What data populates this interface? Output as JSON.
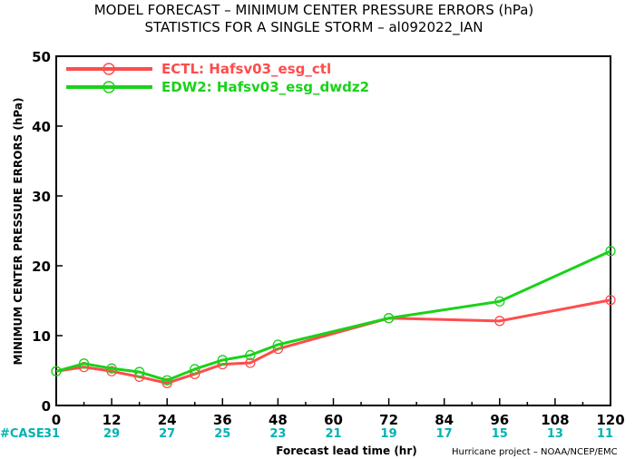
{
  "chart_data": {
    "type": "line",
    "title": "MODEL FORECAST – MINIMUM CENTER PRESSURE ERRORS (hPa)",
    "subtitle": "STATISTICS FOR A SINGLE STORM – al092022_IAN",
    "xlabel": "Forecast lead time (hr)",
    "ylabel": "MINIMUM CENTER PRESSURE ERRORS (hPa)",
    "xlim": [
      0,
      120
    ],
    "ylim": [
      0,
      50
    ],
    "x_ticks": [
      "0",
      "12",
      "24",
      "36",
      "48",
      "60",
      "72",
      "84",
      "96",
      "108",
      "120"
    ],
    "y_ticks": [
      "0",
      "10",
      "20",
      "30",
      "40",
      "50"
    ],
    "grid": false,
    "legend_position": "top-left",
    "series": [
      {
        "name": "ECTL: Hafsv03_esg_ctl",
        "color": "#ff4c4c",
        "x": [
          0,
          6,
          12,
          18,
          24,
          30,
          36,
          42,
          48,
          72,
          96,
          120
        ],
        "y": [
          4.9,
          5.5,
          4.9,
          4.1,
          3.2,
          4.5,
          5.9,
          6.1,
          8.1,
          12.5,
          12.1,
          15.1
        ]
      },
      {
        "name": "EDW2: Hafsv03_esg_dwdz2",
        "color": "#19d219",
        "x": [
          0,
          6,
          12,
          18,
          24,
          30,
          36,
          42,
          48,
          72,
          96,
          120
        ],
        "y": [
          4.9,
          6.0,
          5.3,
          4.8,
          3.6,
          5.2,
          6.5,
          7.2,
          8.7,
          12.5,
          14.9,
          22.1
        ]
      }
    ],
    "case_label": "#CASE",
    "case_counts": [
      {
        "x": 0,
        "n": "31"
      },
      {
        "x": 12,
        "n": "29"
      },
      {
        "x": 24,
        "n": "27"
      },
      {
        "x": 36,
        "n": "25"
      },
      {
        "x": 48,
        "n": "23"
      },
      {
        "x": 60,
        "n": "21"
      },
      {
        "x": 72,
        "n": "19"
      },
      {
        "x": 84,
        "n": "17"
      },
      {
        "x": 96,
        "n": "15"
      },
      {
        "x": 108,
        "n": "13"
      },
      {
        "x": 120,
        "n": "11"
      }
    ],
    "credit": "Hurricane project – NOAA/NCEP/EMC",
    "case_color": "#00b3b3"
  }
}
